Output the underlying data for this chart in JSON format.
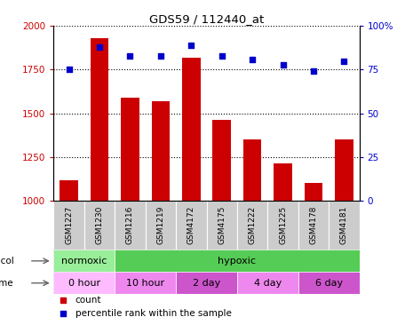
{
  "title": "GDS59 / 112440_at",
  "samples": [
    "GSM1227",
    "GSM1230",
    "GSM1216",
    "GSM1219",
    "GSM4172",
    "GSM4175",
    "GSM1222",
    "GSM1225",
    "GSM4178",
    "GSM4181"
  ],
  "counts": [
    1115,
    1930,
    1590,
    1570,
    1820,
    1460,
    1350,
    1210,
    1100,
    1350
  ],
  "percentiles": [
    75,
    88,
    83,
    83,
    89,
    83,
    81,
    78,
    74,
    80
  ],
  "ylim_left": [
    1000,
    2000
  ],
  "ylim_right": [
    0,
    100
  ],
  "yticks_left": [
    1000,
    1250,
    1500,
    1750,
    2000
  ],
  "yticks_right": [
    0,
    25,
    50,
    75,
    100
  ],
  "bar_color": "#cc0000",
  "dot_color": "#0000cc",
  "sample_cell_color": "#cccccc",
  "protocol_row": [
    {
      "label": "normoxic",
      "start": 0,
      "end": 2,
      "color": "#99ee99"
    },
    {
      "label": "hypoxic",
      "start": 2,
      "end": 10,
      "color": "#55cc55"
    }
  ],
  "time_row": [
    {
      "label": "0 hour",
      "start": 0,
      "end": 2,
      "color": "#ffbbff"
    },
    {
      "label": "10 hour",
      "start": 2,
      "end": 4,
      "color": "#ee88ee"
    },
    {
      "label": "2 day",
      "start": 4,
      "end": 6,
      "color": "#cc55cc"
    },
    {
      "label": "4 day",
      "start": 6,
      "end": 8,
      "color": "#ee88ee"
    },
    {
      "label": "6 day",
      "start": 8,
      "end": 10,
      "color": "#cc55cc"
    }
  ],
  "legend_items": [
    {
      "label": "count",
      "color": "#cc0000",
      "marker": "s"
    },
    {
      "label": "percentile rank within the sample",
      "color": "#0000cc",
      "marker": "s"
    }
  ],
  "n": 10,
  "fig_border_color": "#888888"
}
